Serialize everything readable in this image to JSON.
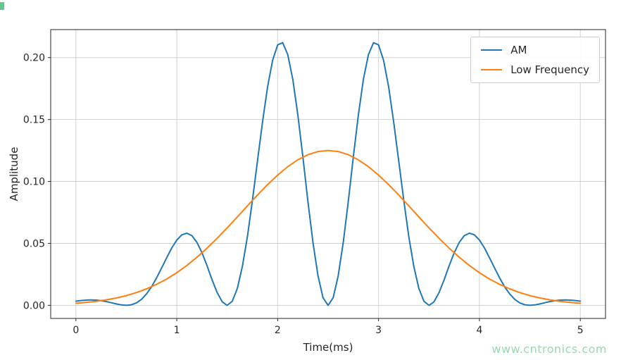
{
  "figure": {
    "background": "#ffffff",
    "watermark": {
      "text": "www.cntronics.com",
      "color": "#9bd8ae"
    }
  },
  "chart_data": {
    "type": "line",
    "title": "",
    "xlabel": "Time(ms)",
    "ylabel": "Amplitude",
    "xlim": [
      -0.25,
      5.25
    ],
    "ylim": [
      -0.0106,
      0.2226
    ],
    "grid": true,
    "grid_color": "#d2d2d2",
    "axis_color": "#262626",
    "legend": {
      "position": "upper right"
    },
    "xticks": {
      "values": [
        0,
        1,
        2,
        3,
        4,
        5
      ],
      "labels": [
        "0",
        "1",
        "2",
        "3",
        "4",
        "5"
      ]
    },
    "yticks": {
      "values": [
        0,
        0.05,
        0.1,
        0.15,
        0.2
      ],
      "labels": [
        "0.00",
        "0.05",
        "0.10",
        "0.15",
        "0.20"
      ]
    },
    "series": [
      {
        "name": "AM",
        "color": "#1f77b4",
        "x": [
          0,
          0.05,
          0.1,
          0.15,
          0.2,
          0.25,
          0.3,
          0.35,
          0.4,
          0.45,
          0.5,
          0.55,
          0.6,
          0.65,
          0.7,
          0.75,
          0.8,
          0.85,
          0.9,
          0.95,
          1,
          1.05,
          1.1,
          1.15,
          1.2,
          1.25,
          1.3,
          1.35,
          1.4,
          1.45,
          1.5,
          1.55,
          1.6,
          1.65,
          1.7,
          1.75,
          1.8,
          1.85,
          1.9,
          1.95,
          2,
          2.05,
          2.1,
          2.15,
          2.2,
          2.25,
          2.3,
          2.35,
          2.4,
          2.45,
          2.5,
          2.55,
          2.6,
          2.65,
          2.7,
          2.75,
          2.8,
          2.85,
          2.9,
          2.95,
          3,
          3.05,
          3.1,
          3.15,
          3.2,
          3.25,
          3.3,
          3.35,
          3.4,
          3.45,
          3.5,
          3.55,
          3.6,
          3.65,
          3.7,
          3.75,
          3.8,
          3.85,
          3.9,
          3.95,
          4,
          4.05,
          4.1,
          4.15,
          4.2,
          4.25,
          4.3,
          4.35,
          4.4,
          4.45,
          4.5,
          4.55,
          4.6,
          4.65,
          4.7,
          4.75,
          4.8,
          4.85,
          4.9,
          4.95,
          5
        ],
        "y": [
          0.00331,
          0.00383,
          0.0042,
          0.00434,
          0.00421,
          0.00376,
          0.00303,
          0.0021,
          0.00113,
          0.00033,
          0,
          0.00044,
          0.00196,
          0.00482,
          0.00917,
          0.01501,
          0.02215,
          0.03016,
          0.03845,
          0.04625,
          0.05269,
          0.05693,
          0.05825,
          0.05623,
          0.05081,
          0.04239,
          0.03189,
          0.02063,
          0.01033,
          0.00285,
          0,
          0.00328,
          0.01363,
          0.03125,
          0.05546,
          0.08469,
          0.11657,
          0.14816,
          0.17626,
          0.19782,
          0.21028,
          0.212,
          0.20243,
          0.18234,
          0.15375,
          0.11971,
          0.08401,
          0.05073,
          0.02371,
          0.00611,
          0,
          0.00611,
          0.02371,
          0.05073,
          0.08401,
          0.11971,
          0.15375,
          0.18234,
          0.20243,
          0.212,
          0.21028,
          0.19782,
          0.17626,
          0.14816,
          0.11657,
          0.08469,
          0.05546,
          0.03125,
          0.01363,
          0.00328,
          0,
          0.00285,
          0.01033,
          0.02063,
          0.03189,
          0.04239,
          0.05081,
          0.05623,
          0.05825,
          0.05693,
          0.05269,
          0.04625,
          0.03845,
          0.03016,
          0.02215,
          0.01501,
          0.00917,
          0.00482,
          0.00196,
          0.00044,
          0,
          0.00033,
          0.00113,
          0.0021,
          0.00303,
          0.00376,
          0.00421,
          0.00434,
          0.0042,
          0.00383,
          0.00331
        ]
      },
      {
        "name": "Low Frequency",
        "color": "#ff7f0e",
        "x": [
          0,
          0.1,
          0.2,
          0.3,
          0.4,
          0.5,
          0.6,
          0.7,
          0.8,
          0.9,
          1,
          1.1,
          1.2,
          1.3,
          1.4,
          1.5,
          1.6,
          1.7,
          1.8,
          1.9,
          2,
          2.1,
          2.2,
          2.3,
          2.4,
          2.5,
          2.6,
          2.7,
          2.8,
          2.9,
          3,
          3.1,
          3.2,
          3.3,
          3.4,
          3.5,
          3.6,
          3.7,
          3.8,
          3.9,
          4,
          4.1,
          4.2,
          4.3,
          4.4,
          4.5,
          4.6,
          4.7,
          4.8,
          4.9,
          5
        ],
        "y": [
          0.00165,
          0.00232,
          0.00321,
          0.00439,
          0.00591,
          0.00785,
          0.01028,
          0.01328,
          0.01692,
          0.02126,
          0.02634,
          0.0322,
          0.03881,
          0.04614,
          0.05411,
          0.06257,
          0.07136,
          0.08027,
          0.08905,
          0.09743,
          0.10514,
          0.1119,
          0.11745,
          0.12159,
          0.12414,
          0.125,
          0.12414,
          0.12159,
          0.11745,
          0.1119,
          0.10514,
          0.09743,
          0.08905,
          0.08027,
          0.07136,
          0.06257,
          0.05411,
          0.04614,
          0.03881,
          0.0322,
          0.02634,
          0.02126,
          0.01692,
          0.01328,
          0.01028,
          0.00785,
          0.00591,
          0.00439,
          0.00321,
          0.00232,
          0.00165
        ]
      }
    ]
  }
}
